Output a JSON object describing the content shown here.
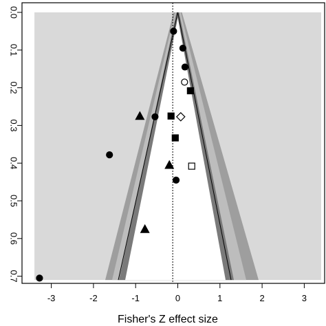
{
  "chart_data": {
    "type": "scatter",
    "subtype": "funnel-plot",
    "xlabel": "Fisher's Z effect size",
    "ylabel": "",
    "xlim": [
      -3.5,
      3.5
    ],
    "ylim": [
      0.71,
      0.0
    ],
    "y_reversed": true,
    "x_ticks": [
      "-3",
      "-2",
      "-1",
      "0",
      "1",
      "2",
      "3"
    ],
    "x_tick_values": [
      -3,
      -2,
      -1,
      0,
      1,
      2,
      3
    ],
    "y_ticks": [
      "0.0",
      "0.1",
      "0.2",
      "0.3",
      "0.4",
      "0.5",
      "0.6",
      "0.7"
    ],
    "y_tick_values": [
      0.0,
      0.1,
      0.2,
      0.3,
      0.4,
      0.5,
      0.6,
      0.7
    ],
    "reference_line_x": -0.12,
    "grid": false,
    "colors": {
      "outer_region": "#d9d9d9",
      "inner_region": "#ffffff",
      "contour_band_1": "#9e9e9e",
      "contour_band_2": "#bdbdbd",
      "contour_band_3": "#7a7a7a",
      "points": "#000000"
    },
    "points": [
      {
        "x": -0.1,
        "y": 0.05,
        "shape": "circle",
        "filled": true
      },
      {
        "x": 0.12,
        "y": 0.095,
        "shape": "circle",
        "filled": true
      },
      {
        "x": 0.17,
        "y": 0.145,
        "shape": "circle",
        "filled": true
      },
      {
        "x": 0.16,
        "y": 0.185,
        "shape": "circle",
        "filled": false
      },
      {
        "x": 0.3,
        "y": 0.208,
        "shape": "square",
        "filled": true
      },
      {
        "x": -0.9,
        "y": 0.275,
        "shape": "triangle",
        "filled": true
      },
      {
        "x": -0.54,
        "y": 0.277,
        "shape": "circle",
        "filled": true
      },
      {
        "x": -0.16,
        "y": 0.275,
        "shape": "square",
        "filled": true
      },
      {
        "x": 0.07,
        "y": 0.277,
        "shape": "diamond",
        "filled": false
      },
      {
        "x": -0.06,
        "y": 0.333,
        "shape": "square",
        "filled": true
      },
      {
        "x": -1.62,
        "y": 0.378,
        "shape": "circle",
        "filled": true
      },
      {
        "x": -0.2,
        "y": 0.405,
        "shape": "triangle",
        "filled": true
      },
      {
        "x": 0.33,
        "y": 0.408,
        "shape": "square",
        "filled": false
      },
      {
        "x": -0.04,
        "y": 0.445,
        "shape": "circle",
        "filled": true
      },
      {
        "x": -0.78,
        "y": 0.575,
        "shape": "triangle",
        "filled": true
      },
      {
        "x": -3.28,
        "y": 0.705,
        "shape": "circle",
        "filled": true
      }
    ]
  }
}
